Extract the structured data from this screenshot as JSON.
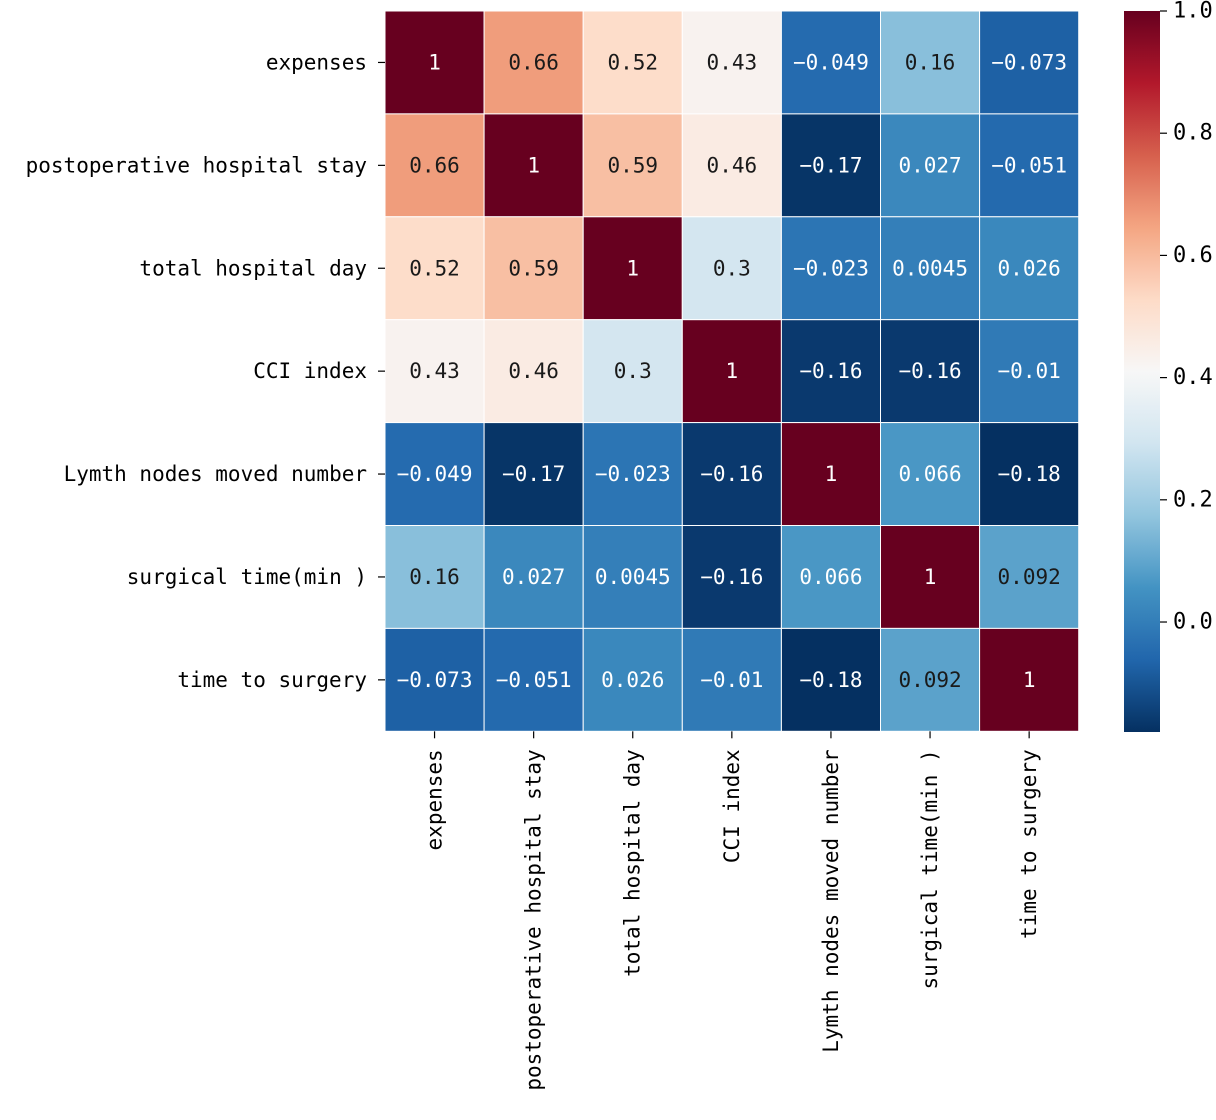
{
  "chart_data": {
    "type": "heatmap",
    "title": "",
    "row_labels": [
      "expenses",
      "postoperative hospital stay",
      "total hospital day",
      "CCI index",
      "Lymth nodes moved number",
      "surgical time(min )",
      "time to surgery"
    ],
    "col_labels": [
      "expenses",
      "postoperative hospital stay",
      "total hospital day",
      "CCI index",
      "Lymth nodes moved number",
      "surgical time(min )",
      "time to surgery"
    ],
    "values": [
      [
        1,
        0.66,
        0.52,
        0.43,
        -0.049,
        0.16,
        -0.073
      ],
      [
        0.66,
        1,
        0.59,
        0.46,
        -0.17,
        0.027,
        -0.051
      ],
      [
        0.52,
        0.59,
        1,
        0.3,
        -0.023,
        0.0045,
        0.026
      ],
      [
        0.43,
        0.46,
        0.3,
        1,
        -0.16,
        -0.16,
        -0.01
      ],
      [
        -0.049,
        -0.17,
        -0.023,
        -0.16,
        1,
        0.066,
        -0.18
      ],
      [
        0.16,
        0.027,
        0.0045,
        -0.16,
        0.066,
        1,
        0.092
      ],
      [
        -0.073,
        -0.051,
        0.026,
        -0.01,
        -0.18,
        0.092,
        1
      ]
    ],
    "cell_labels": [
      [
        "1",
        "0.66",
        "0.52",
        "0.43",
        "−0.049",
        "0.16",
        "−0.073"
      ],
      [
        "0.66",
        "1",
        "0.59",
        "0.46",
        "−0.17",
        "0.027",
        "−0.051"
      ],
      [
        "0.52",
        "0.59",
        "1",
        "0.3",
        "−0.023",
        "0.0045",
        "0.026"
      ],
      [
        "0.43",
        "0.46",
        "0.3",
        "1",
        "−0.16",
        "−0.16",
        "−0.01"
      ],
      [
        "−0.049",
        "−0.17",
        "−0.023",
        "−0.16",
        "1",
        "0.066",
        "−0.18"
      ],
      [
        "0.16",
        "0.027",
        "0.0045",
        "−0.16",
        "0.066",
        "1",
        "0.092"
      ],
      [
        "−0.073",
        "−0.051",
        "0.026",
        "−0.01",
        "−0.18",
        "0.092",
        "1"
      ]
    ],
    "colormap": "RdBu_r",
    "colorbar": {
      "vmin": -0.18,
      "vmax": 1.0,
      "ticks": [
        0.0,
        0.2,
        0.4,
        0.6,
        0.8,
        1.0
      ],
      "tick_labels": [
        "0.0",
        "0.2",
        "0.4",
        "0.6",
        "0.8",
        "1.0"
      ]
    },
    "colors": {
      "stops": [
        "#053061",
        "#2166ac",
        "#4393c3",
        "#92c5de",
        "#d1e5f0",
        "#f7f7f7",
        "#fddbc7",
        "#f4a582",
        "#d6604d",
        "#b2182b",
        "#67001f"
      ],
      "grid_line": "#ffffff",
      "text_light": "#ffffff",
      "text_dark": "#1a1a1a"
    }
  }
}
